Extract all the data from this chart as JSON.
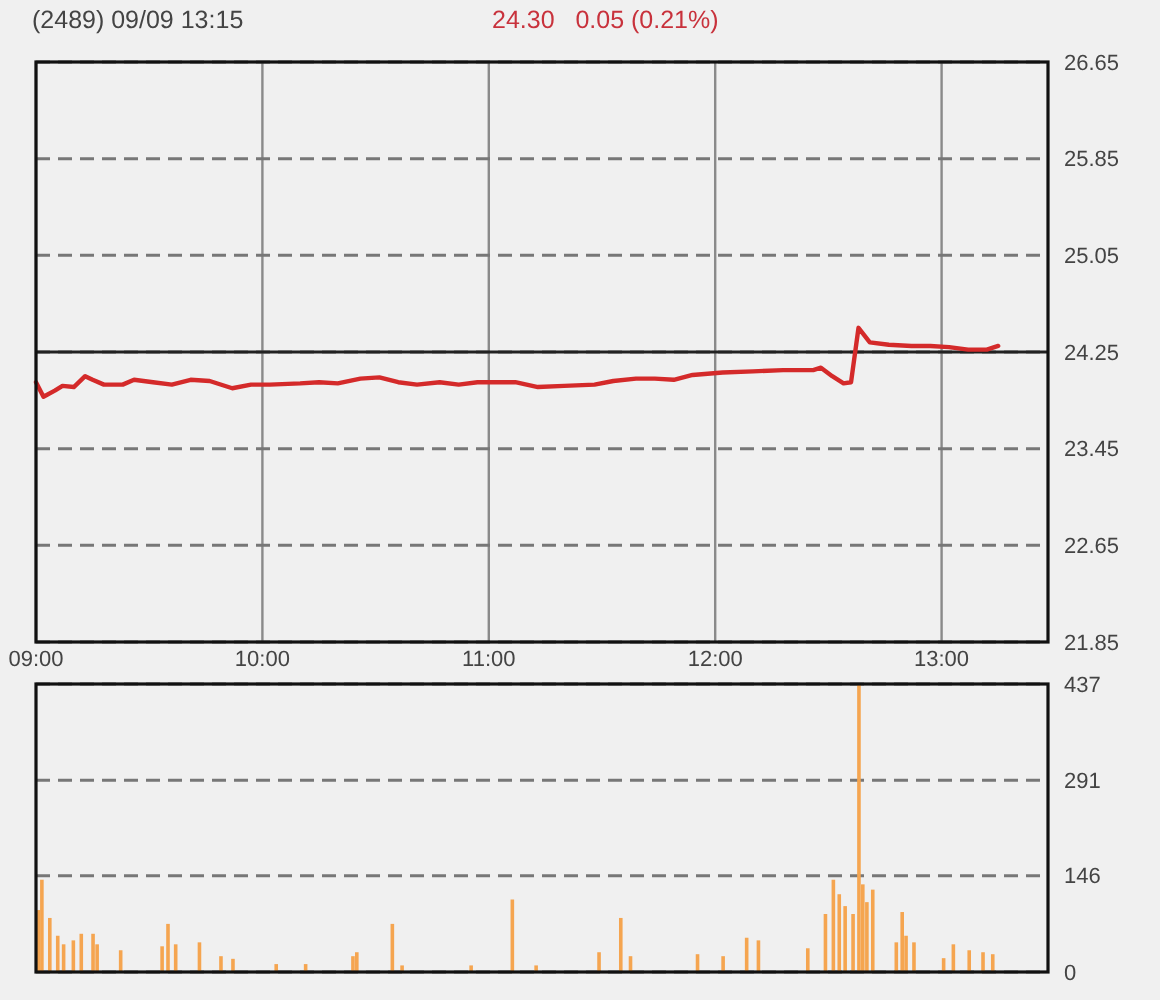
{
  "chart_data": [
    {
      "type": "line",
      "title": "(2489)   09/09 13:15",
      "subtitle": "24.30   0.05 (0.21%)",
      "x": [
        9,
        9.033,
        9.083,
        9.117,
        9.167,
        9.217,
        9.25,
        9.3,
        9.383,
        9.433,
        9.517,
        9.6,
        9.683,
        9.767,
        9.867,
        9.95,
        10.033,
        10.167,
        10.25,
        10.333,
        10.433,
        10.517,
        10.6,
        10.683,
        10.783,
        10.867,
        10.95,
        11.033,
        11.117,
        11.217,
        11.333,
        11.467,
        11.55,
        11.65,
        11.733,
        11.817,
        11.9,
        12.033,
        12.167,
        12.3,
        12.433,
        12.467,
        12.517,
        12.567,
        12.6,
        12.633,
        12.683,
        12.767,
        12.867,
        12.95,
        13.033,
        13.117,
        13.2,
        13.25
      ],
      "series": [
        {
          "color": "#d42a2a",
          "values": [
            24.0,
            23.88,
            23.93,
            23.97,
            23.96,
            24.05,
            24.02,
            23.98,
            23.98,
            24.02,
            24.0,
            23.98,
            24.02,
            24.01,
            23.95,
            23.98,
            23.98,
            23.99,
            24.0,
            23.99,
            24.03,
            24.04,
            24.0,
            23.98,
            24.0,
            23.98,
            24.0,
            24.0,
            24.0,
            23.96,
            23.97,
            23.98,
            24.01,
            24.03,
            24.03,
            24.02,
            24.06,
            24.08,
            24.09,
            24.1,
            24.1,
            24.12,
            24.05,
            23.99,
            24.0,
            24.45,
            24.33,
            24.31,
            24.3,
            24.3,
            24.29,
            24.27,
            24.27,
            24.3
          ]
        }
      ],
      "xlim": [
        9,
        13.47
      ],
      "xticks": [
        {
          "value": 9,
          "label": "09:00"
        },
        {
          "value": 10,
          "label": "10:00"
        },
        {
          "value": 11,
          "label": "11:00"
        },
        {
          "value": 12,
          "label": "12:00"
        },
        {
          "value": 13,
          "label": "13:00"
        }
      ],
      "ylim": [
        21.85,
        26.65
      ],
      "yticks": [
        21.85,
        22.65,
        23.45,
        24.25,
        25.05,
        25.85,
        26.65
      ],
      "ref_lines": [
        {
          "axis": "y",
          "value": 24.25,
          "color": "#222222"
        }
      ],
      "grid": true,
      "marker": "none",
      "line_style": "solid"
    },
    {
      "type": "bar",
      "x": [
        9.01,
        9.026,
        9.061,
        9.096,
        9.122,
        9.165,
        9.2,
        9.252,
        9.27,
        9.374,
        9.557,
        9.583,
        9.617,
        9.722,
        9.817,
        9.87,
        10.061,
        10.191,
        10.4,
        10.417,
        10.574,
        10.617,
        10.922,
        11.104,
        11.209,
        11.487,
        11.583,
        11.626,
        11.922,
        12.035,
        12.139,
        12.191,
        12.409,
        12.487,
        12.522,
        12.548,
        12.574,
        12.609,
        12.635,
        12.652,
        12.67,
        12.696,
        12.8,
        12.826,
        12.843,
        12.878,
        13.009,
        13.052,
        13.122,
        13.183,
        13.226
      ],
      "values": [
        94,
        140,
        82,
        55,
        42,
        48,
        58,
        58,
        42,
        33,
        39,
        73,
        42,
        45,
        24,
        20,
        12,
        12,
        24,
        30,
        73,
        10,
        10,
        110,
        10,
        30,
        82,
        24,
        27,
        24,
        52,
        48,
        36,
        88,
        140,
        118,
        100,
        88,
        437,
        133,
        106,
        125,
        45,
        91,
        55,
        45,
        21,
        42,
        33,
        30,
        27
      ],
      "color": "#f5a550",
      "xlim": [
        9,
        13.47
      ],
      "ylim": [
        0,
        437
      ],
      "yticks": [
        0,
        146,
        291,
        437
      ],
      "grid": "y",
      "tick_labels": "y"
    }
  ]
}
